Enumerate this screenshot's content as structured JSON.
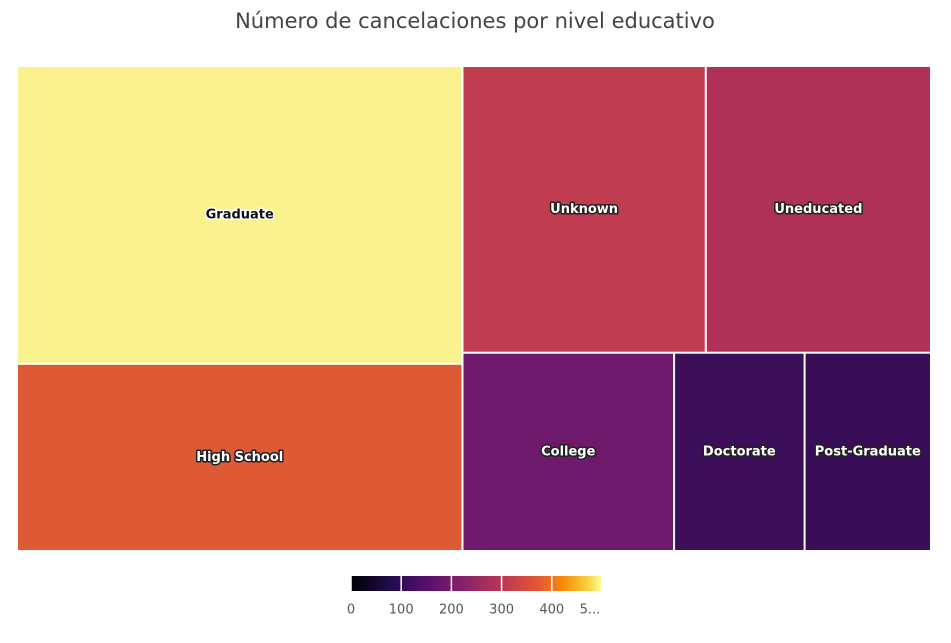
{
  "chart_data": {
    "type": "treemap",
    "title": "Número de cancelaciones por nivel educativo",
    "categories": [
      "Graduate",
      "High School",
      "Unknown",
      "Uneducated",
      "College",
      "Doctorate",
      "Post-Graduate"
    ],
    "values": [
      487,
      306,
      256,
      237,
      154,
      95,
      92
    ],
    "colors": [
      "#f9f28e",
      "#dd5a34",
      "#c03c51",
      "#b03158",
      "#6e196c",
      "#3d0e5a",
      "#390d58"
    ],
    "colorbar": {
      "lim": [
        0,
        500
      ],
      "ticks": [
        0,
        100,
        200,
        300,
        400,
        {
          "value": 500,
          "label": "5..."
        }
      ]
    }
  }
}
